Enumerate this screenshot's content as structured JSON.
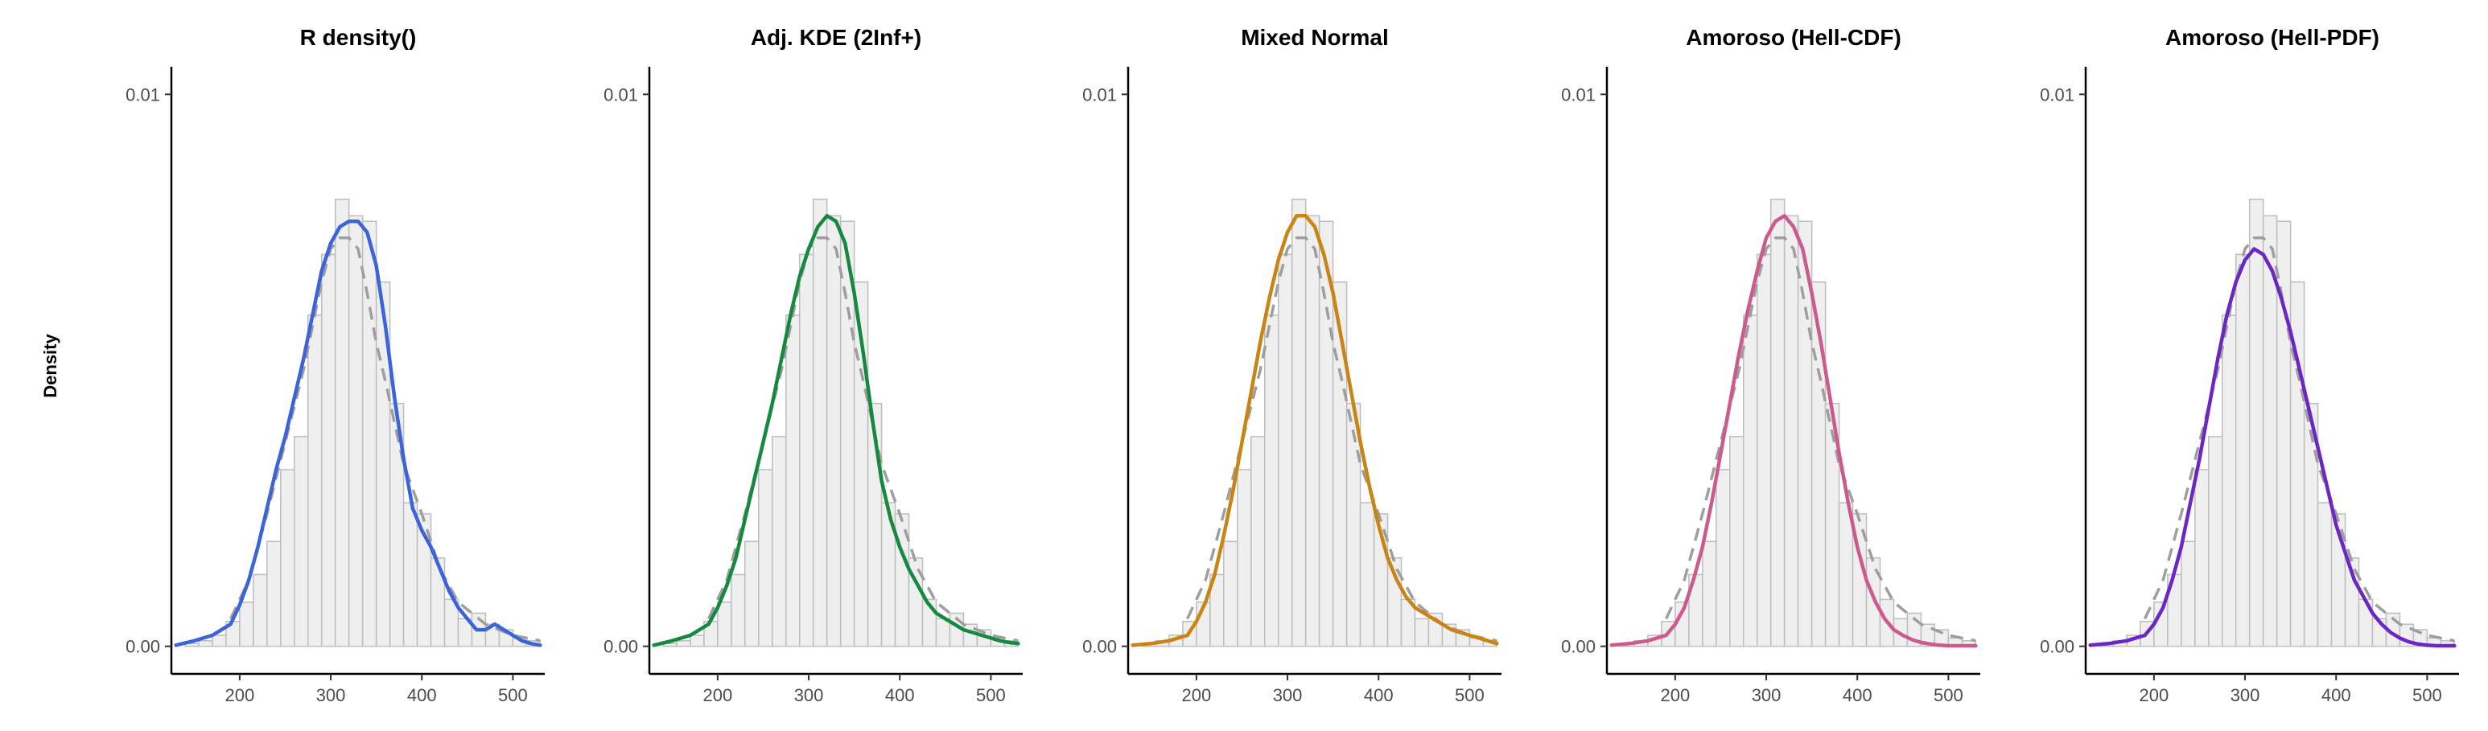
{
  "ylabel": "Density",
  "histogram": {
    "bin_width": 15,
    "bin_starts": [
      140,
      155,
      170,
      185,
      200,
      215,
      230,
      245,
      260,
      275,
      290,
      305,
      320,
      335,
      350,
      365,
      380,
      395,
      410,
      425,
      440,
      455,
      470,
      485,
      500,
      515
    ],
    "densities": [
      5e-05,
      0.0001,
      0.0002,
      0.00045,
      0.0008,
      0.0013,
      0.0019,
      0.0032,
      0.0038,
      0.006,
      0.0071,
      0.0081,
      0.0078,
      0.0077,
      0.0066,
      0.0044,
      0.0026,
      0.0024,
      0.0016,
      0.00085,
      0.0005,
      0.0006,
      0.0004,
      0.0003,
      0.00015,
      0.0001
    ],
    "reference_curve_style": "dashed gray"
  },
  "chart_data": [
    {
      "type": "line",
      "title": "R density()",
      "color": "#3b64db",
      "x": [
        130,
        150,
        170,
        190,
        200,
        210,
        220,
        230,
        240,
        250,
        260,
        270,
        280,
        290,
        300,
        310,
        320,
        330,
        340,
        350,
        360,
        370,
        380,
        390,
        400,
        410,
        420,
        430,
        440,
        450,
        460,
        470,
        480,
        490,
        500,
        510,
        520,
        530
      ],
      "y": [
        2e-05,
        0.0001,
        0.0002,
        0.0004,
        0.00075,
        0.0012,
        0.0018,
        0.0025,
        0.0032,
        0.0038,
        0.0045,
        0.0052,
        0.006,
        0.0068,
        0.0073,
        0.0076,
        0.0077,
        0.0077,
        0.0075,
        0.0069,
        0.0058,
        0.0045,
        0.0034,
        0.0025,
        0.0021,
        0.0018,
        0.0014,
        0.001,
        0.0007,
        0.0005,
        0.0003,
        0.0003,
        0.0004,
        0.0003,
        0.0002,
        0.0001,
        5e-05,
        2e-05
      ],
      "xticks": [
        "200",
        "300",
        "400",
        "500"
      ],
      "yticks": [
        "0.00",
        "0.01"
      ],
      "xlim": [
        125,
        535
      ],
      "ylim": [
        -0.0005,
        0.0105
      ]
    },
    {
      "type": "line",
      "title": "Adj. KDE (2Inf+)",
      "color": "#138a3d",
      "x": [
        130,
        150,
        170,
        190,
        200,
        210,
        220,
        230,
        240,
        250,
        260,
        270,
        280,
        290,
        300,
        310,
        320,
        330,
        340,
        350,
        360,
        370,
        380,
        390,
        400,
        410,
        420,
        430,
        440,
        450,
        460,
        470,
        480,
        490,
        500,
        510,
        520,
        530
      ],
      "y": [
        2e-05,
        0.0001,
        0.0002,
        0.0004,
        0.0007,
        0.0011,
        0.0016,
        0.0023,
        0.003,
        0.0037,
        0.0044,
        0.0052,
        0.006,
        0.0067,
        0.0072,
        0.0076,
        0.0078,
        0.0077,
        0.0073,
        0.0064,
        0.0053,
        0.0041,
        0.003,
        0.0023,
        0.0018,
        0.0014,
        0.0011,
        0.0008,
        0.0006,
        0.0005,
        0.0004,
        0.0003,
        0.00025,
        0.0002,
        0.00015,
        0.0001,
        7e-05,
        5e-05
      ],
      "xticks": [
        "200",
        "300",
        "400",
        "500"
      ],
      "yticks": [
        "0.00",
        "0.01"
      ],
      "xlim": [
        125,
        535
      ],
      "ylim": [
        -0.0005,
        0.0105
      ]
    },
    {
      "type": "line",
      "title": "Mixed Normal",
      "color": "#c98414",
      "x": [
        130,
        150,
        170,
        190,
        200,
        210,
        220,
        230,
        240,
        250,
        260,
        270,
        280,
        290,
        300,
        310,
        320,
        330,
        340,
        350,
        360,
        370,
        380,
        390,
        400,
        410,
        420,
        430,
        440,
        450,
        460,
        470,
        480,
        490,
        500,
        510,
        520,
        530
      ],
      "y": [
        2e-05,
        5e-05,
        0.0001,
        0.0002,
        0.00045,
        0.0008,
        0.0013,
        0.002,
        0.0028,
        0.0037,
        0.0046,
        0.0055,
        0.0063,
        0.007,
        0.0075,
        0.0078,
        0.0078,
        0.0076,
        0.0071,
        0.0064,
        0.0055,
        0.0046,
        0.0037,
        0.0029,
        0.0022,
        0.0016,
        0.0012,
        0.0009,
        0.0007,
        0.0006,
        0.0005,
        0.0004,
        0.0003,
        0.00025,
        0.0002,
        0.00015,
        0.0001,
        5e-05
      ],
      "xticks": [
        "200",
        "300",
        "400",
        "500"
      ],
      "yticks": [
        "0.00",
        "0.01"
      ],
      "xlim": [
        125,
        535
      ],
      "ylim": [
        -0.0005,
        0.0105
      ]
    },
    {
      "type": "line",
      "title": "Amoroso (Hell-CDF)",
      "color": "#cc5a8e",
      "x": [
        130,
        150,
        170,
        190,
        200,
        210,
        220,
        230,
        240,
        250,
        260,
        270,
        280,
        290,
        300,
        310,
        320,
        330,
        340,
        350,
        360,
        370,
        380,
        390,
        400,
        410,
        420,
        430,
        440,
        450,
        460,
        470,
        480,
        490,
        500,
        510,
        520,
        530
      ],
      "y": [
        2e-05,
        5e-05,
        0.0001,
        0.0002,
        0.0004,
        0.0007,
        0.0012,
        0.0018,
        0.0026,
        0.0035,
        0.0044,
        0.0053,
        0.0061,
        0.0068,
        0.0074,
        0.0077,
        0.0078,
        0.0076,
        0.0072,
        0.0064,
        0.0055,
        0.0045,
        0.0035,
        0.0026,
        0.0018,
        0.0012,
        0.0008,
        0.0005,
        0.0003,
        0.0002,
        0.00012,
        7e-05,
        4e-05,
        2e-05,
        1e-05,
        1e-05,
        1e-05,
        1e-05
      ],
      "xticks": [
        "200",
        "300",
        "400",
        "500"
      ],
      "yticks": [
        "0.00",
        "0.01"
      ],
      "xlim": [
        125,
        535
      ],
      "ylim": [
        -0.0005,
        0.0105
      ]
    },
    {
      "type": "line",
      "title": "Amoroso (Hell-PDF)",
      "color": "#6b26c4",
      "x": [
        130,
        150,
        170,
        190,
        200,
        210,
        220,
        230,
        240,
        250,
        260,
        270,
        280,
        290,
        300,
        310,
        320,
        330,
        340,
        350,
        360,
        370,
        380,
        390,
        400,
        410,
        420,
        430,
        440,
        450,
        460,
        470,
        480,
        490,
        500,
        510,
        520,
        530
      ],
      "y": [
        2e-05,
        5e-05,
        0.0001,
        0.0002,
        0.0004,
        0.0007,
        0.0012,
        0.0018,
        0.0026,
        0.0034,
        0.0043,
        0.0052,
        0.006,
        0.0066,
        0.007,
        0.0072,
        0.0071,
        0.0068,
        0.0063,
        0.0057,
        0.005,
        0.0043,
        0.0036,
        0.0029,
        0.0022,
        0.0017,
        0.0012,
        0.0009,
        0.0006,
        0.0004,
        0.00025,
        0.00015,
        8e-05,
        4e-05,
        2e-05,
        1e-05,
        1e-05,
        1e-05
      ],
      "xticks": [
        "200",
        "300",
        "400",
        "500"
      ],
      "yticks": [
        "0.00",
        "0.01"
      ],
      "xlim": [
        125,
        535
      ],
      "ylim": [
        -0.0005,
        0.0105
      ]
    }
  ],
  "reference_curve": {
    "x": [
      190,
      210,
      230,
      250,
      270,
      290,
      300,
      310,
      320,
      330,
      340,
      350,
      360,
      380,
      400,
      420,
      440,
      470,
      500,
      530
    ],
    "y": [
      0.0005,
      0.0012,
      0.0024,
      0.0037,
      0.005,
      0.0066,
      0.0072,
      0.0074,
      0.0074,
      0.0072,
      0.0064,
      0.0055,
      0.0048,
      0.0033,
      0.0024,
      0.0014,
      0.0008,
      0.0004,
      0.0002,
      0.0001
    ]
  }
}
